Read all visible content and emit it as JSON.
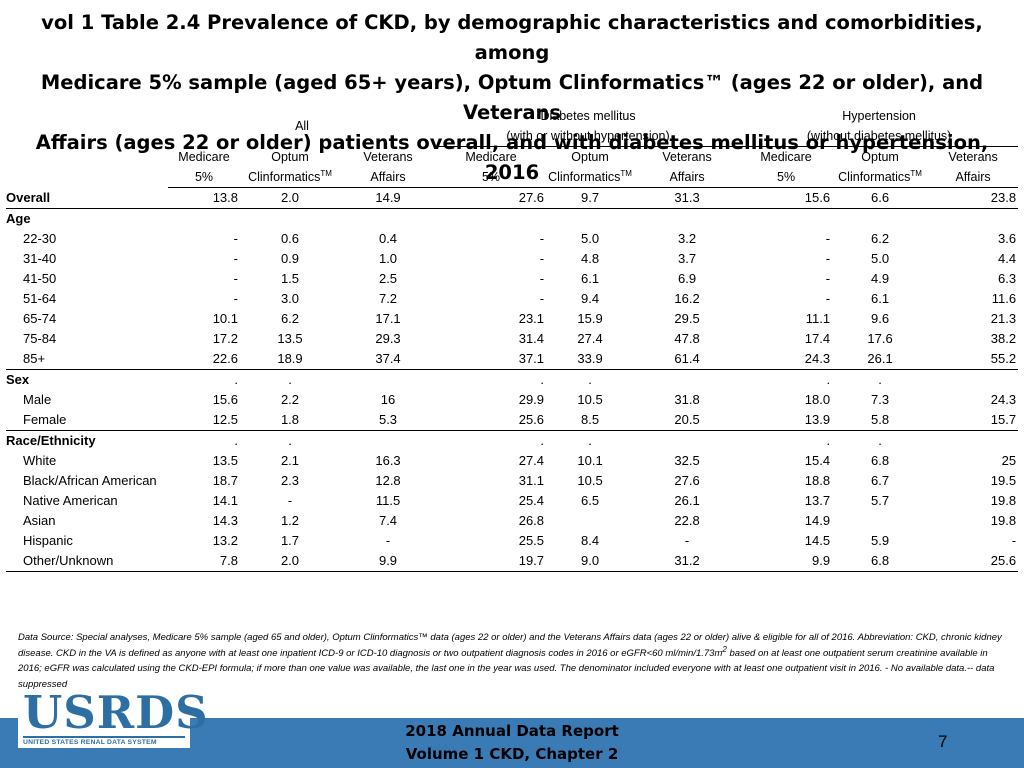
{
  "title": {
    "line1": "vol 1 Table 2.4 Prevalence of CKD, by demographic characteristics and comorbidities, among",
    "line2": "Medicare 5% sample (aged 65+ years), Optum Clinformatics™ (ages 22 or older), and Veterans",
    "line3": "Affairs (ages 22 or older) patients overall, and with diabetes mellitus or hypertension, 2016"
  },
  "header": {
    "all": "All",
    "dm_line1": "Diabetes mellitus",
    "dm_line2": "(with or without hypertension)",
    "htn_line1": "Hypertension",
    "htn_line2": "(without diabetes mellitus)",
    "col_top": [
      "Medicare",
      "Optum",
      "Veterans",
      "Medicare",
      "Optum",
      "Veterans",
      "Medicare",
      "Optum",
      "Veterans"
    ],
    "col_bottom": [
      "5%",
      "Clinformatics",
      "Affairs",
      "5%",
      "Clinformatics",
      "Affairs",
      "5%",
      "Clinformatics",
      "Affairs"
    ],
    "tm": "TM"
  },
  "rows": {
    "overall": {
      "label": "Overall",
      "values": [
        "13.8",
        "2.0",
        "14.9",
        "27.6",
        "9.7",
        "31.3",
        "15.6",
        "6.6",
        "23.8"
      ]
    },
    "age": {
      "label": "Age"
    },
    "age_rows": [
      {
        "label": "22-30",
        "values": [
          "-",
          "0.6",
          "0.4",
          "-",
          "5.0",
          "3.2",
          "-",
          "6.2",
          "3.6"
        ]
      },
      {
        "label": "31-40",
        "values": [
          "-",
          "0.9",
          "1.0",
          "-",
          "4.8",
          "3.7",
          "-",
          "5.0",
          "4.4"
        ]
      },
      {
        "label": "41-50",
        "values": [
          "-",
          "1.5",
          "2.5",
          "-",
          "6.1",
          "6.9",
          "-",
          "4.9",
          "6.3"
        ]
      },
      {
        "label": "51-64",
        "values": [
          "-",
          "3.0",
          "7.2",
          "-",
          "9.4",
          "16.2",
          "-",
          "6.1",
          "11.6"
        ]
      },
      {
        "label": "65-74",
        "values": [
          "10.1",
          "6.2",
          "17.1",
          "23.1",
          "15.9",
          "29.5",
          "11.1",
          "9.6",
          "21.3"
        ]
      },
      {
        "label": "75-84",
        "values": [
          "17.2",
          "13.5",
          "29.3",
          "31.4",
          "27.4",
          "47.8",
          "17.4",
          "17.6",
          "38.2"
        ]
      },
      {
        "label": "85+",
        "values": [
          "22.6",
          "18.9",
          "37.4",
          "37.1",
          "33.9",
          "61.4",
          "24.3",
          "26.1",
          "55.2"
        ]
      }
    ],
    "sex": {
      "label": "Sex",
      "values": [
        ".",
        ".",
        "",
        ".",
        ".",
        "",
        ".",
        ".",
        ""
      ]
    },
    "sex_rows": [
      {
        "label": "Male",
        "values": [
          "15.6",
          "2.2",
          "16",
          "29.9",
          "10.5",
          "31.8",
          "18.0",
          "7.3",
          "24.3"
        ]
      },
      {
        "label": "Female",
        "values": [
          "12.5",
          "1.8",
          "5.3",
          "25.6",
          "8.5",
          "20.5",
          "13.9",
          "5.8",
          "15.7"
        ]
      }
    ],
    "race": {
      "label": "Race/Ethnicity",
      "values": [
        ".",
        ".",
        "",
        ".",
        ".",
        "",
        ".",
        ".",
        ""
      ]
    },
    "race_rows": [
      {
        "label": "White",
        "values": [
          "13.5",
          "2.1",
          "16.3",
          "27.4",
          "10.1",
          "32.5",
          "15.4",
          "6.8",
          "25"
        ]
      },
      {
        "label": "Black/African American",
        "values": [
          "18.7",
          "2.3",
          "12.8",
          "31.1",
          "10.5",
          "27.6",
          "18.8",
          "6.7",
          "19.5"
        ]
      },
      {
        "label": "Native American",
        "values": [
          "14.1",
          "-",
          "11.5",
          "25.4",
          "6.5",
          "26.1",
          "13.7",
          "5.7",
          "19.8"
        ]
      },
      {
        "label": "Asian",
        "values": [
          "14.3",
          "1.2",
          "7.4",
          "26.8",
          "",
          "22.8",
          "14.9",
          "",
          "19.8"
        ]
      },
      {
        "label": "Hispanic",
        "values": [
          "13.2",
          "1.7",
          "-",
          "25.5",
          "8.4",
          "-",
          "14.5",
          "5.9",
          "-"
        ]
      },
      {
        "label": "Other/Unknown",
        "values": [
          "7.8",
          "2.0",
          "9.9",
          "19.7",
          "9.0",
          "31.2",
          "9.9",
          "6.8",
          "25.6"
        ]
      }
    ]
  },
  "note": {
    "text1": "Data Source: Special analyses, Medicare 5% sample (aged 65 and older), Optum Clinformatics™ data (ages 22 or older) and the Veterans Affairs data (ages 22 or older) alive & eligible for all of 2016. Abbreviation: CKD, chronic kidney disease. CKD in the VA is defined as anyone with at least one inpatient ICD-9 or ICD-10 diagnosis or two outpatient diagnosis codes in 2016 or eGFR<60 ml/min/1.73m",
    "sup": "2",
    "text2": " based on at least one outpatient serum creatinine available in 2016; eGFR was calculated using the CKD-EPI formula; if more than one value was available, the last one in the year was used. The denominator included everyone with at least one outpatient visit in 2016. - No available data.-- data suppressed"
  },
  "footer": {
    "logo": "USRDS",
    "logo_sub": "UNITED STATES RENAL DATA SYSTEM",
    "line1": "2018 Annual Data Report",
    "line2": "Volume 1 CKD, Chapter 2",
    "page": "7",
    "bar_color": "#3a7bb5",
    "logo_color": "#2d6fa3"
  }
}
